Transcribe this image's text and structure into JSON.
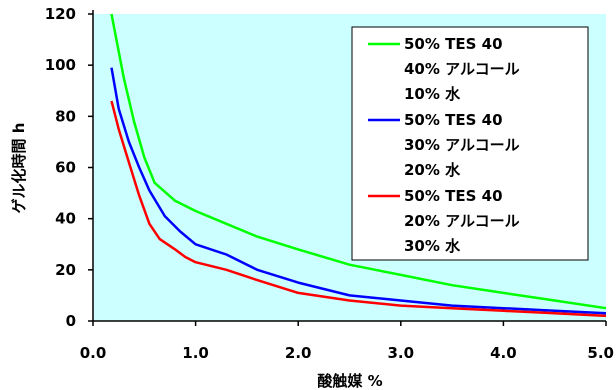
{
  "chart_data": {
    "type": "line",
    "title": "",
    "xlabel": "酸触媒 %",
    "ylabel": "ゲル化時間 h",
    "xlim": [
      0,
      5
    ],
    "ylim": [
      0,
      120
    ],
    "xticks": [
      "0.0",
      "1.0",
      "2.0",
      "3.0",
      "4.0",
      "5.0"
    ],
    "yticks": [
      "0",
      "20",
      "40",
      "60",
      "80",
      "100",
      "120"
    ],
    "grid": false,
    "legend_position": "top-right",
    "plot_background": "#ccffff",
    "series": [
      {
        "name_lines": [
          "50% TES 40",
          "40% アルコール",
          "10% 水"
        ],
        "color": "#00ff00",
        "x": [
          0.18,
          0.3,
          0.4,
          0.5,
          0.6,
          0.8,
          1.0,
          1.3,
          1.6,
          2.0,
          2.5,
          3.0,
          3.5,
          4.0,
          4.5,
          5.0
        ],
        "y": [
          120,
          95,
          78,
          64,
          54,
          47,
          43,
          38,
          33,
          28,
          22,
          18,
          14,
          11,
          8,
          5
        ]
      },
      {
        "name_lines": [
          "50% TES 40",
          "30% アルコール",
          "20% 水"
        ],
        "color": "#0000ff",
        "x": [
          0.18,
          0.25,
          0.35,
          0.45,
          0.55,
          0.7,
          0.85,
          1.0,
          1.3,
          1.6,
          2.0,
          2.5,
          3.0,
          3.5,
          4.0,
          4.5,
          5.0
        ],
        "y": [
          99,
          83,
          70,
          60,
          51,
          41,
          35,
          30,
          26,
          20,
          15,
          10,
          8,
          6,
          5,
          4,
          3
        ]
      },
      {
        "name_lines": [
          "50% TES 40",
          "20% アルコール",
          "30% 水"
        ],
        "color": "#ff0000",
        "x": [
          0.18,
          0.25,
          0.35,
          0.45,
          0.55,
          0.65,
          0.8,
          0.9,
          1.0,
          1.3,
          1.6,
          2.0,
          2.5,
          3.0,
          3.5,
          4.0,
          4.5,
          5.0
        ],
        "y": [
          86,
          75,
          62,
          49,
          38,
          32,
          28,
          25,
          23,
          20,
          16,
          11,
          8,
          6,
          5,
          4,
          3,
          2
        ]
      }
    ]
  }
}
